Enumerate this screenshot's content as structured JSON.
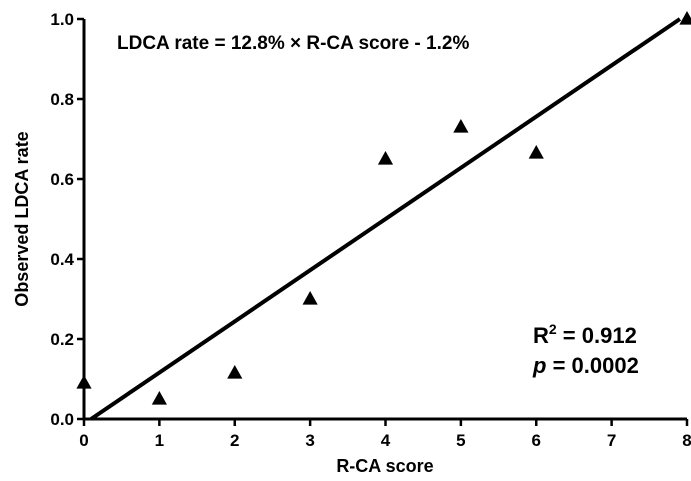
{
  "chart_data": {
    "type": "scatter",
    "xlabel": "R-CA score",
    "ylabel": "Observed LDCA rate",
    "xlim": [
      0,
      8
    ],
    "ylim": [
      0,
      1.0
    ],
    "x_ticks": [
      "0",
      "1",
      "2",
      "3",
      "4",
      "5",
      "6",
      "7",
      "8"
    ],
    "y_ticks": [
      "0.0",
      "0.2",
      "0.4",
      "0.6",
      "0.8",
      "1.0"
    ],
    "grid": false,
    "points": [
      {
        "x": 0,
        "y": 0.09
      },
      {
        "x": 1,
        "y": 0.05
      },
      {
        "x": 2,
        "y": 0.115
      },
      {
        "x": 3,
        "y": 0.3
      },
      {
        "x": 4,
        "y": 0.65
      },
      {
        "x": 5,
        "y": 0.73
      },
      {
        "x": 6,
        "y": 0.665
      },
      {
        "x": 8,
        "y": 1.0
      }
    ],
    "fit_line": {
      "slope": 0.128,
      "intercept": -0.012
    },
    "equation": "LDCA rate = 12.8% × R-CA score - 1.2%",
    "r2_prefix": "R",
    "r2_superscript": "2",
    "r2_value": " = 0.912",
    "p_symbol": "p",
    "p_value": " = 0.0002",
    "marker": "triangle",
    "color": "#000000"
  }
}
